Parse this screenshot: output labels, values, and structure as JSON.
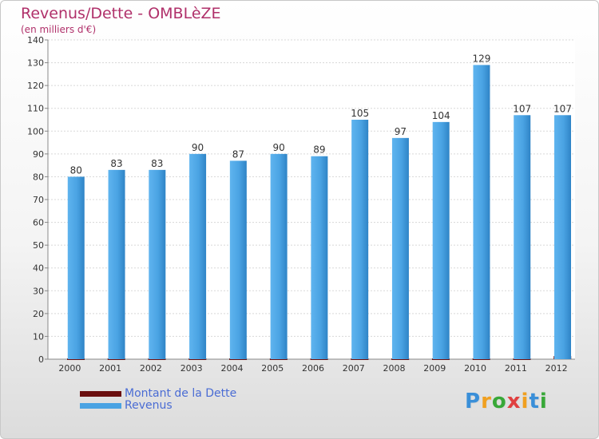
{
  "title": "Revenus/Dette - OMBLèZE",
  "subtitle": "(en milliers d'€)",
  "logo": {
    "text": "Proxiti",
    "letters": [
      "P",
      "r",
      "o",
      "x",
      "i",
      "t",
      "i"
    ],
    "letter_colors": [
      "#3a8fd8",
      "#f0a020",
      "#38a838",
      "#e04040",
      "#f0a020",
      "#3a8fd8",
      "#38a838"
    ]
  },
  "chart_data": {
    "type": "bar",
    "categories": [
      "2000",
      "2001",
      "2002",
      "2003",
      "2004",
      "2005",
      "2006",
      "2007",
      "2008",
      "2009",
      "2010",
      "2011",
      "2012"
    ],
    "series": [
      {
        "name": "Montant de la Dette",
        "color": "#6b0f0f",
        "values": [
          0,
          0,
          0,
          0,
          0,
          0,
          0,
          0,
          0,
          0,
          0,
          0,
          1
        ]
      },
      {
        "name": "Revenus",
        "color": "#4aa3e3",
        "values": [
          80,
          83,
          83,
          90,
          87,
          90,
          89,
          105,
          97,
          104,
          129,
          107,
          107
        ]
      }
    ],
    "ylim": [
      0,
      140
    ],
    "yticks": [
      0,
      10,
      20,
      30,
      40,
      50,
      60,
      70,
      80,
      90,
      100,
      110,
      120,
      130,
      140
    ],
    "grid": true,
    "legend": "bottom-left"
  }
}
